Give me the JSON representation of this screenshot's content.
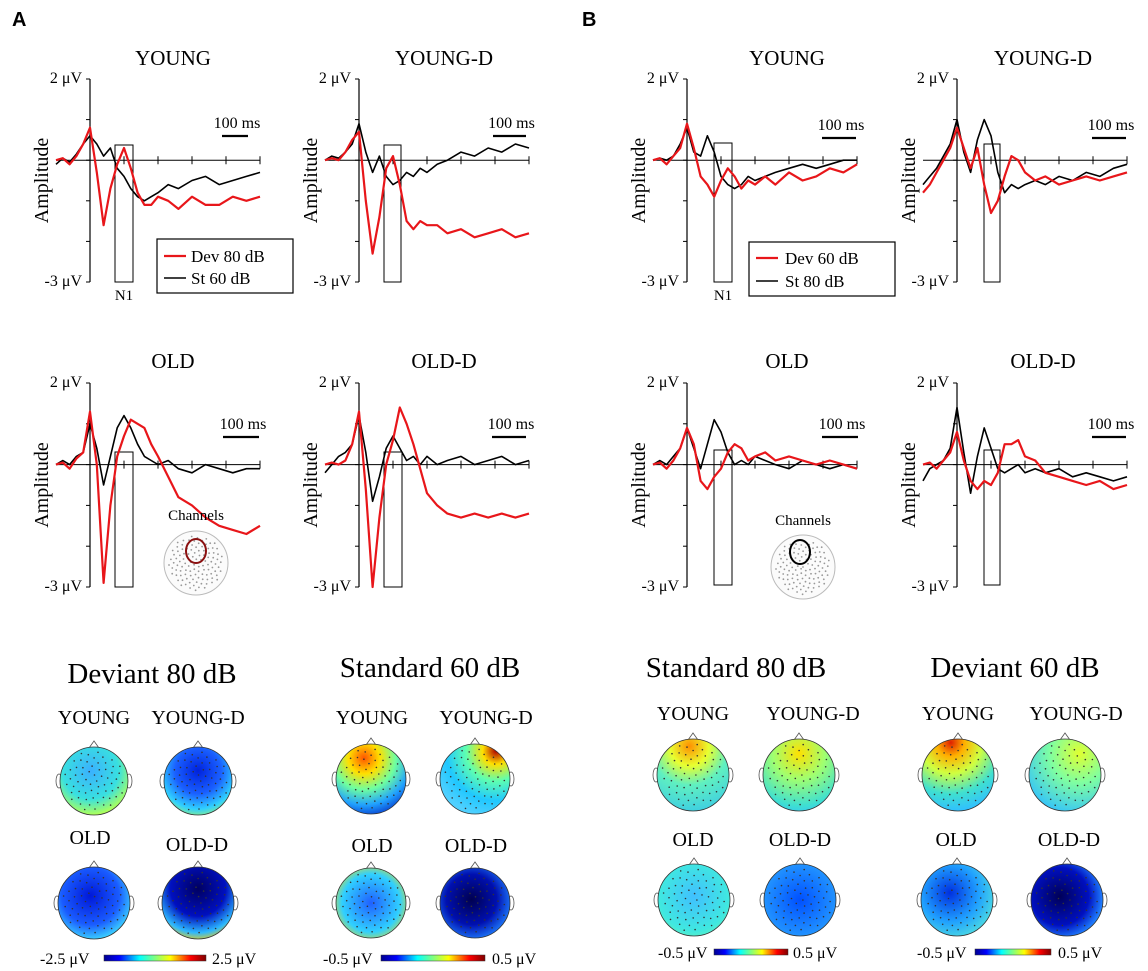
{
  "panels": [
    {
      "letter": "A",
      "legend": [
        {
          "label": "Dev 80 dB",
          "color": "#e8161a"
        },
        {
          "label": "St 60 dB",
          "color": "#000000"
        }
      ],
      "channels_label": "Channels",
      "topomap": {
        "left_title": "Deviant 80 dB",
        "right_title": "Standard 60 dB",
        "left_colorbar": {
          "min": "-2.5 μV",
          "max": "2.5 μV"
        },
        "right_colorbar": {
          "min": "-0.5 μV",
          "max": "0.5 μV"
        }
      }
    },
    {
      "letter": "B",
      "legend": [
        {
          "label": "Dev 60 dB",
          "color": "#e8161a"
        },
        {
          "label": "St 80 dB",
          "color": "#000000"
        }
      ],
      "channels_label": "Channels",
      "topomap": {
        "left_title": "Standard 80 dB",
        "right_title": "Deviant 60 dB",
        "left_colorbar": {
          "min": "-0.5 μV",
          "max": "0.5 μV"
        },
        "right_colorbar": {
          "min": "-0.5 μV",
          "max": "0.5 μV"
        }
      }
    }
  ],
  "group_labels": [
    "YOUNG",
    "YOUNG-D",
    "OLD",
    "OLD-D"
  ],
  "axis": {
    "y_label": "Amplitude",
    "y_max_label": "2 μV",
    "y_min_label": "-3 μV",
    "scale_bar_label": "100 ms",
    "window_label": "N1"
  },
  "chart_data": {
    "type": "line",
    "x_unit": "ms",
    "y_unit": "μV",
    "ylim": [
      -3,
      2
    ],
    "scale_bar_ms": 100,
    "subplots": [
      {
        "panel": "A",
        "title": "YOUNG",
        "series": [
          {
            "name": "Dev 80 dB",
            "x": [
              -100,
              -80,
              -60,
              -40,
              -20,
              0,
              20,
              40,
              60,
              80,
              100,
              120,
              140,
              160,
              180,
              200,
              230,
              260,
              300,
              340,
              380,
              420,
              460,
              500
            ],
            "y": [
              0,
              0.05,
              -0.1,
              0.1,
              0.4,
              0.8,
              -0.3,
              -1.6,
              -0.7,
              -0.1,
              0.3,
              -0.2,
              -0.8,
              -1.1,
              -1.1,
              -0.9,
              -1,
              -1.2,
              -0.9,
              -1.1,
              -1.1,
              -0.9,
              -1,
              -0.9
            ]
          },
          {
            "name": "St 60 dB",
            "x": [
              -100,
              -80,
              -60,
              -40,
              -20,
              0,
              20,
              40,
              60,
              80,
              100,
              120,
              140,
              160,
              180,
              200,
              230,
              260,
              300,
              340,
              380,
              420,
              460,
              500
            ],
            "y": [
              -0.1,
              0.05,
              -0.05,
              0.15,
              0.4,
              0.6,
              0.4,
              0.1,
              0.3,
              -0.2,
              -0.4,
              -0.7,
              -0.9,
              -1.0,
              -0.9,
              -0.8,
              -0.6,
              -0.7,
              -0.5,
              -0.4,
              -0.6,
              -0.5,
              -0.4,
              -0.3
            ]
          }
        ]
      },
      {
        "panel": "A",
        "title": "YOUNG-D",
        "series": [
          {
            "name": "Dev 80 dB",
            "x": [
              -100,
              -80,
              -60,
              -40,
              -20,
              0,
              20,
              40,
              60,
              80,
              100,
              120,
              140,
              160,
              180,
              200,
              230,
              260,
              300,
              340,
              380,
              420,
              460,
              500
            ],
            "y": [
              0,
              0.05,
              0,
              0.2,
              0.5,
              0.7,
              -1.0,
              -2.3,
              -1.4,
              -0.2,
              0.1,
              -0.6,
              -1.5,
              -1.7,
              -1.5,
              -1.6,
              -1.6,
              -1.8,
              -1.7,
              -1.9,
              -1.8,
              -1.7,
              -1.9,
              -1.8
            ]
          },
          {
            "name": "St 60 dB",
            "x": [
              -100,
              -80,
              -60,
              -40,
              -20,
              0,
              20,
              40,
              60,
              80,
              100,
              120,
              140,
              160,
              180,
              200,
              230,
              260,
              300,
              340,
              380,
              420,
              460,
              500
            ],
            "y": [
              0,
              0.1,
              0.05,
              0.2,
              0.4,
              0.9,
              0.2,
              -0.3,
              0.1,
              -0.4,
              -0.6,
              -0.5,
              -0.3,
              -0.4,
              -0.2,
              -0.3,
              -0.1,
              0.0,
              0.2,
              0.1,
              0.3,
              0.2,
              0.4,
              0.3
            ]
          }
        ]
      },
      {
        "panel": "A",
        "title": "OLD",
        "series": [
          {
            "name": "Dev 80 dB",
            "x": [
              -100,
              -80,
              -60,
              -40,
              -20,
              0,
              20,
              40,
              60,
              80,
              100,
              120,
              140,
              160,
              180,
              200,
              230,
              260,
              300,
              340,
              380,
              420,
              460,
              500
            ],
            "y": [
              0,
              0.05,
              -0.1,
              0.15,
              0.3,
              1.3,
              0.0,
              -2.9,
              -1.0,
              0.2,
              0.7,
              1.1,
              1.0,
              0.9,
              0.5,
              0.2,
              -0.3,
              -0.8,
              -1.0,
              -1.3,
              -1.5,
              -1.6,
              -1.7,
              -1.5
            ]
          },
          {
            "name": "St 60 dB",
            "x": [
              -100,
              -80,
              -60,
              -40,
              -20,
              0,
              20,
              40,
              60,
              80,
              100,
              120,
              140,
              160,
              180,
              200,
              230,
              260,
              300,
              340,
              380,
              420,
              460,
              500
            ],
            "y": [
              0,
              0.1,
              0,
              0.2,
              0.3,
              1.0,
              0.4,
              -0.5,
              0.2,
              0.9,
              1.2,
              0.9,
              0.5,
              0.2,
              0.1,
              0.0,
              0.1,
              -0.1,
              -0.2,
              0.0,
              -0.1,
              -0.2,
              -0.1,
              -0.1
            ]
          }
        ]
      },
      {
        "panel": "A",
        "title": "OLD-D",
        "series": [
          {
            "name": "Dev 80 dB",
            "x": [
              -100,
              -80,
              -60,
              -40,
              -20,
              0,
              20,
              40,
              60,
              80,
              100,
              120,
              140,
              160,
              180,
              200,
              230,
              260,
              300,
              340,
              380,
              420,
              460,
              500
            ],
            "y": [
              0,
              0.05,
              0,
              0.1,
              0.5,
              1.3,
              -0.6,
              -3.0,
              -1.3,
              0.0,
              0.6,
              1.4,
              1.0,
              0.5,
              -0.1,
              -0.7,
              -1.0,
              -1.2,
              -1.3,
              -1.2,
              -1.3,
              -1.2,
              -1.3,
              -1.2
            ]
          },
          {
            "name": "St 60 dB",
            "x": [
              -100,
              -80,
              -60,
              -40,
              -20,
              0,
              20,
              40,
              60,
              80,
              100,
              120,
              140,
              160,
              180,
              200,
              230,
              260,
              300,
              340,
              380,
              420,
              460,
              500
            ],
            "y": [
              -0.2,
              0.0,
              0.2,
              0.3,
              0.5,
              1.2,
              0.3,
              -0.9,
              -0.3,
              0.4,
              0.7,
              0.4,
              0.1,
              0.2,
              0.0,
              0.2,
              0.0,
              0.1,
              0.2,
              0.0,
              0.1,
              0.2,
              0.0,
              0.1
            ]
          }
        ]
      },
      {
        "panel": "B",
        "title": "YOUNG",
        "series": [
          {
            "name": "Dev 60 dB",
            "x": [
              -100,
              -80,
              -60,
              -40,
              -20,
              0,
              20,
              40,
              60,
              80,
              100,
              120,
              140,
              160,
              180,
              200,
              230,
              260,
              300,
              340,
              380,
              420,
              460,
              500
            ],
            "y": [
              0,
              0.05,
              -0.1,
              0.1,
              0.3,
              0.9,
              0.3,
              -0.4,
              -0.6,
              -0.9,
              -0.5,
              -0.2,
              -0.4,
              -0.7,
              -0.5,
              -0.6,
              -0.4,
              -0.6,
              -0.3,
              -0.5,
              -0.4,
              -0.2,
              -0.3,
              -0.1
            ]
          },
          {
            "name": "St 80 dB",
            "x": [
              -100,
              -80,
              -60,
              -40,
              -20,
              0,
              20,
              40,
              60,
              80,
              100,
              120,
              140,
              160,
              180,
              200,
              230,
              260,
              300,
              340,
              380,
              420,
              460,
              500
            ],
            "y": [
              0,
              0.05,
              0,
              0.1,
              0.4,
              0.8,
              0.2,
              0.1,
              0.6,
              0.2,
              -0.4,
              -0.6,
              -0.7,
              -0.6,
              -0.4,
              -0.5,
              -0.4,
              -0.3,
              -0.2,
              -0.1,
              -0.2,
              -0.1,
              0.0,
              0.0
            ]
          }
        ]
      },
      {
        "panel": "B",
        "title": "YOUNG-D",
        "series": [
          {
            "name": "Dev 60 dB",
            "x": [
              -100,
              -80,
              -60,
              -40,
              -20,
              0,
              20,
              40,
              60,
              80,
              100,
              120,
              140,
              160,
              180,
              200,
              230,
              260,
              300,
              340,
              380,
              420,
              460,
              500
            ],
            "y": [
              -0.8,
              -0.6,
              -0.3,
              0.0,
              0.3,
              0.8,
              0.3,
              -0.2,
              0.3,
              -0.6,
              -1.3,
              -1.0,
              -0.4,
              0.1,
              0.0,
              -0.3,
              -0.5,
              -0.4,
              -0.6,
              -0.5,
              -0.4,
              -0.5,
              -0.4,
              -0.3
            ]
          },
          {
            "name": "St 80 dB",
            "x": [
              -100,
              -80,
              -60,
              -40,
              -20,
              0,
              20,
              40,
              60,
              80,
              100,
              120,
              140,
              160,
              180,
              200,
              230,
              260,
              300,
              340,
              380,
              420,
              460,
              500
            ],
            "y": [
              -0.6,
              -0.4,
              -0.2,
              0.1,
              0.4,
              1.0,
              0.2,
              -0.3,
              0.5,
              1.0,
              0.6,
              -0.3,
              -0.8,
              -0.6,
              -0.7,
              -0.6,
              -0.5,
              -0.6,
              -0.4,
              -0.5,
              -0.3,
              -0.4,
              -0.2,
              -0.1
            ]
          }
        ]
      },
      {
        "panel": "B",
        "title": "OLD",
        "series": [
          {
            "name": "Dev 60 dB",
            "x": [
              -100,
              -80,
              -60,
              -40,
              -20,
              0,
              20,
              40,
              60,
              80,
              100,
              120,
              140,
              160,
              180,
              200,
              230,
              260,
              300,
              340,
              380,
              420,
              460,
              500
            ],
            "y": [
              0,
              0.05,
              -0.1,
              0.1,
              0.4,
              0.9,
              0.5,
              -0.4,
              -0.6,
              -0.3,
              -0.1,
              0.3,
              0.5,
              0.4,
              0.1,
              0.2,
              0.3,
              0.1,
              0.2,
              0.1,
              0.0,
              0.1,
              0.0,
              -0.1
            ]
          },
          {
            "name": "St 80 dB",
            "x": [
              -100,
              -80,
              -60,
              -40,
              -20,
              0,
              20,
              40,
              60,
              80,
              100,
              120,
              140,
              160,
              180,
              200,
              230,
              260,
              300,
              340,
              380,
              420,
              460,
              500
            ],
            "y": [
              0,
              0.1,
              0,
              0.2,
              0.4,
              0.9,
              0.4,
              -0.1,
              0.5,
              1.1,
              0.8,
              0.3,
              0.0,
              0.1,
              0.0,
              0.2,
              0.1,
              0.0,
              -0.1,
              0.1,
              0.0,
              -0.1,
              0.0,
              -0.1
            ]
          }
        ]
      },
      {
        "panel": "B",
        "title": "OLD-D",
        "series": [
          {
            "name": "Dev 60 dB",
            "x": [
              -100,
              -80,
              -60,
              -40,
              -20,
              0,
              20,
              40,
              60,
              80,
              100,
              120,
              140,
              160,
              180,
              200,
              230,
              260,
              300,
              340,
              380,
              420,
              460,
              500
            ],
            "y": [
              0,
              0.05,
              -0.1,
              0.1,
              0.3,
              0.8,
              0.1,
              -0.4,
              -0.6,
              -0.4,
              -0.5,
              -0.2,
              0.5,
              0.5,
              0.6,
              0.2,
              0.1,
              -0.2,
              -0.3,
              -0.4,
              -0.5,
              -0.4,
              -0.6,
              -0.5
            ]
          },
          {
            "name": "St 80 dB",
            "x": [
              -100,
              -80,
              -60,
              -40,
              -20,
              0,
              20,
              40,
              60,
              80,
              100,
              120,
              140,
              160,
              180,
              200,
              230,
              260,
              300,
              340,
              380,
              420,
              460,
              500
            ],
            "y": [
              -0.4,
              -0.1,
              0.0,
              0.1,
              0.4,
              1.4,
              0.3,
              -0.7,
              0.2,
              0.9,
              0.4,
              -0.1,
              -0.2,
              -0.1,
              0.0,
              -0.2,
              -0.1,
              -0.2,
              -0.1,
              -0.3,
              -0.2,
              -0.3,
              -0.4,
              -0.3
            ]
          }
        ]
      }
    ]
  },
  "colors": {
    "deviant": "#e8161a",
    "standard": "#000000"
  }
}
